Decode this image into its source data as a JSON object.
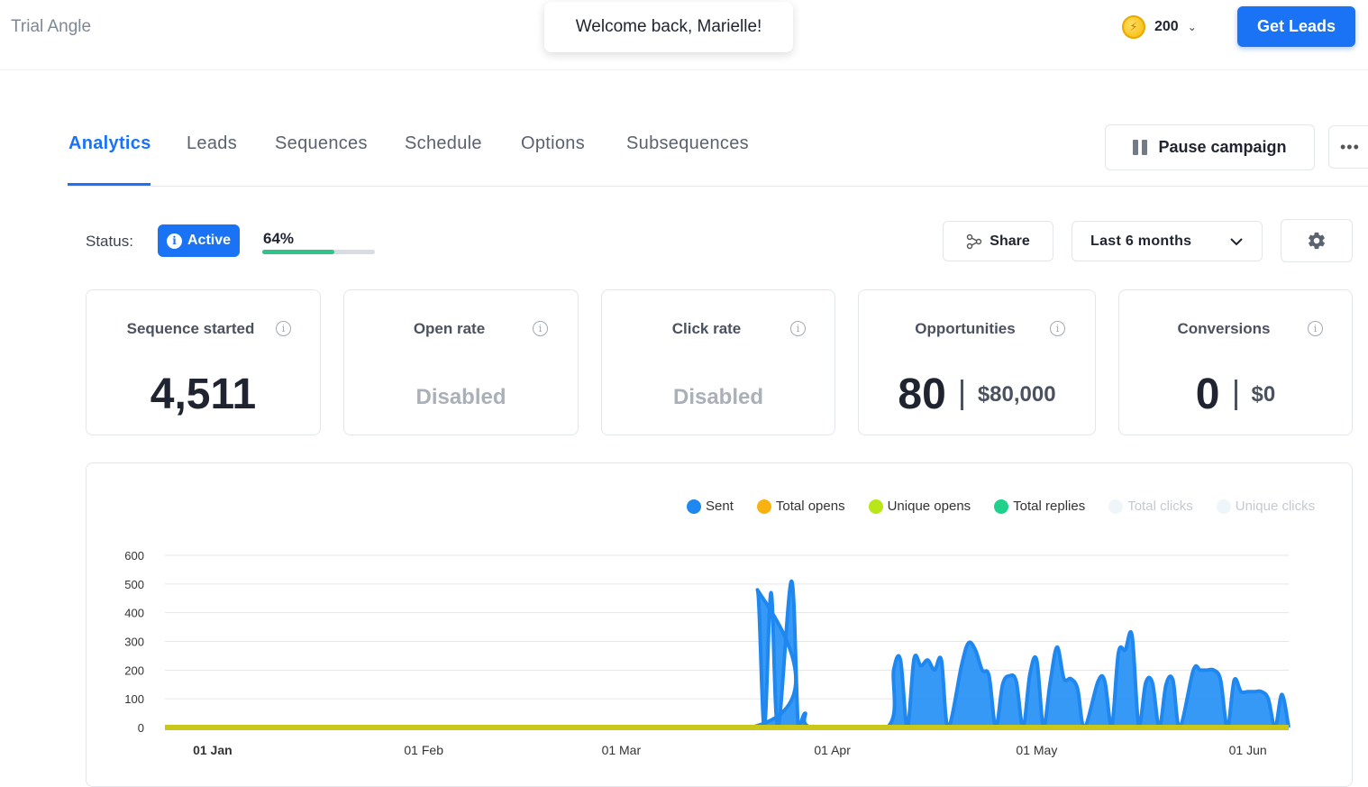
{
  "header": {
    "workspace": "Trial Angle",
    "toast": "Welcome back, Marielle!",
    "credits": "200",
    "get_leads": "Get Leads"
  },
  "tabs": [
    {
      "label": "Analytics",
      "active": true
    },
    {
      "label": "Leads"
    },
    {
      "label": "Sequences"
    },
    {
      "label": "Schedule"
    },
    {
      "label": "Options"
    },
    {
      "label": "Subsequences"
    }
  ],
  "actions": {
    "pause": "Pause campaign",
    "more": "•••",
    "share": "Share",
    "range": "Last 6 months"
  },
  "status": {
    "label": "Status:",
    "badge": "Active",
    "progress_label": "64%",
    "progress": 0.64
  },
  "cards": [
    {
      "title": "Sequence started",
      "value": "4,511"
    },
    {
      "title": "Open rate",
      "value": "Disabled"
    },
    {
      "title": "Click rate",
      "value": "Disabled"
    },
    {
      "title": "Opportunities",
      "value": "80",
      "money": "$80,000"
    },
    {
      "title": "Conversions",
      "value": "0",
      "money": "$0"
    }
  ],
  "colors": {
    "accent": "#1a73f5",
    "progress": "#2fc28a",
    "sent": "#1e88f0",
    "total_opens": "#f9b20f",
    "unique_opens": "#b8e616",
    "total_replies": "#1fd18a",
    "inactive": "#eef6fa"
  },
  "chart_data": {
    "type": "area",
    "ylim": [
      0,
      600
    ],
    "yticks": [
      "0",
      "100",
      "200",
      "300",
      "400",
      "500",
      "600"
    ],
    "xticks": [
      "01 Jan",
      "01 Feb",
      "01 Mar",
      "01 Apr",
      "01 May",
      "01 Jun"
    ],
    "legend": [
      {
        "name": "Sent",
        "color": "#1e88f0",
        "active": true
      },
      {
        "name": "Total opens",
        "color": "#f9b20f",
        "active": true
      },
      {
        "name": "Unique opens",
        "color": "#b8e616",
        "active": true
      },
      {
        "name": "Total replies",
        "color": "#1fd18a",
        "active": true
      },
      {
        "name": "Total clicks",
        "color": "#eef6fa",
        "active": false
      },
      {
        "name": "Unique clicks",
        "color": "#eef6fa",
        "active": false
      }
    ],
    "series": [
      {
        "name": "Sent",
        "points": [
          [
            "2023-12-25",
            0
          ],
          [
            "2024-03-20",
            0
          ],
          [
            "2024-03-21",
            480
          ],
          [
            "2024-03-22",
            0
          ],
          [
            "2024-03-23",
            470
          ],
          [
            "2024-03-24",
            0
          ],
          [
            "2024-03-26",
            510
          ],
          [
            "2024-03-27",
            0
          ],
          [
            "2024-03-28",
            50
          ],
          [
            "2024-03-29",
            0
          ],
          [
            "2024-04-09",
            0
          ],
          [
            "2024-04-10",
            200
          ],
          [
            "2024-04-11",
            235
          ],
          [
            "2024-04-12",
            0
          ],
          [
            "2024-04-13",
            240
          ],
          [
            "2024-04-14",
            215
          ],
          [
            "2024-04-15",
            235
          ],
          [
            "2024-04-16",
            200
          ],
          [
            "2024-04-17",
            235
          ],
          [
            "2024-04-18",
            0
          ],
          [
            "2024-04-20",
            220
          ],
          [
            "2024-04-21",
            295
          ],
          [
            "2024-04-22",
            270
          ],
          [
            "2024-04-23",
            200
          ],
          [
            "2024-04-24",
            180
          ],
          [
            "2024-04-25",
            0
          ],
          [
            "2024-04-26",
            150
          ],
          [
            "2024-04-27",
            180
          ],
          [
            "2024-04-28",
            160
          ],
          [
            "2024-04-29",
            0
          ],
          [
            "2024-04-30",
            185
          ],
          [
            "2024-05-01",
            235
          ],
          [
            "2024-05-02",
            0
          ],
          [
            "2024-05-03",
            160
          ],
          [
            "2024-05-04",
            280
          ],
          [
            "2024-05-05",
            170
          ],
          [
            "2024-05-06",
            170
          ],
          [
            "2024-05-07",
            135
          ],
          [
            "2024-05-08",
            0
          ],
          [
            "2024-05-10",
            160
          ],
          [
            "2024-05-11",
            160
          ],
          [
            "2024-05-12",
            0
          ],
          [
            "2024-05-13",
            260
          ],
          [
            "2024-05-14",
            270
          ],
          [
            "2024-05-15",
            320
          ],
          [
            "2024-05-16",
            0
          ],
          [
            "2024-05-17",
            155
          ],
          [
            "2024-05-18",
            155
          ],
          [
            "2024-05-19",
            0
          ],
          [
            "2024-05-20",
            150
          ],
          [
            "2024-05-21",
            165
          ],
          [
            "2024-05-22",
            0
          ],
          [
            "2024-05-24",
            200
          ],
          [
            "2024-05-25",
            200
          ],
          [
            "2024-05-26",
            200
          ],
          [
            "2024-05-27",
            200
          ],
          [
            "2024-05-28",
            165
          ],
          [
            "2024-05-29",
            0
          ],
          [
            "2024-05-30",
            165
          ],
          [
            "2024-05-31",
            125
          ],
          [
            "2024-06-01",
            125
          ],
          [
            "2024-06-02",
            125
          ],
          [
            "2024-06-03",
            125
          ],
          [
            "2024-06-04",
            100
          ],
          [
            "2024-06-05",
            0
          ],
          [
            "2024-06-06",
            115
          ],
          [
            "2024-06-07",
            0
          ]
        ]
      },
      {
        "name": "Total replies",
        "points": [
          [
            "2023-12-25",
            0
          ],
          [
            "2024-06-07",
            0
          ]
        ]
      },
      {
        "name": "Unique opens",
        "points": [
          [
            "2023-12-25",
            0
          ],
          [
            "2024-06-07",
            0
          ]
        ]
      }
    ]
  }
}
